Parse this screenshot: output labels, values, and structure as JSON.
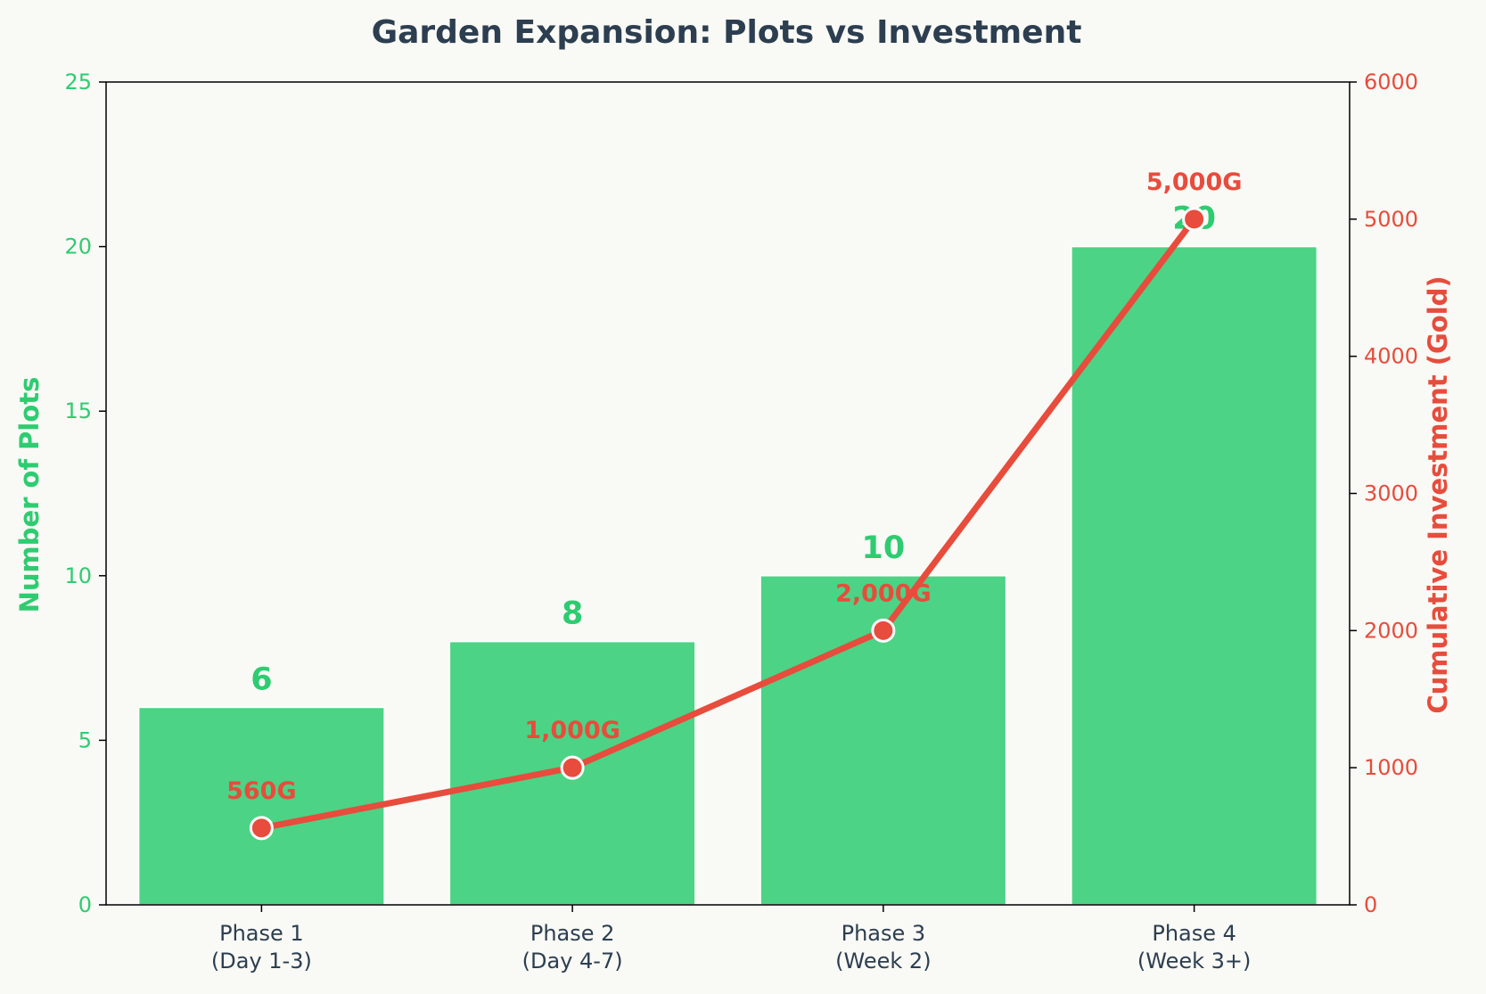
{
  "chart_data": {
    "type": "bar",
    "title": "Garden Expansion: Plots vs Investment",
    "categories": [
      [
        "Phase 1",
        "(Day 1-3)"
      ],
      [
        "Phase 2",
        "(Day 4-7)"
      ],
      [
        "Phase 3",
        "(Week 2)"
      ],
      [
        "Phase 4",
        "(Week 3+)"
      ]
    ],
    "ylabel": "Number of Plots",
    "y2label": "Cumulative Investment (Gold)",
    "ylim": [
      0,
      25
    ],
    "y2lim": [
      0,
      6000
    ],
    "yticks": [
      "0",
      "5",
      "10",
      "15",
      "20",
      "25"
    ],
    "y2ticks": [
      "0",
      "1000",
      "2000",
      "3000",
      "4000",
      "5000",
      "6000"
    ],
    "series": [
      {
        "name": "",
        "type": "bar",
        "axis": "left",
        "values": [
          6,
          8,
          10,
          20
        ],
        "labels": [
          "6",
          "8",
          "10",
          "20"
        ],
        "color": "#2ecc71"
      },
      {
        "name": "",
        "type": "line",
        "axis": "right",
        "values": [
          560,
          1000,
          2000,
          5000
        ],
        "labels": [
          "560G",
          "1,000G",
          "2,000G",
          "5,000G"
        ],
        "color": "#e74c3c"
      }
    ],
    "grid": false,
    "legend": "none"
  }
}
